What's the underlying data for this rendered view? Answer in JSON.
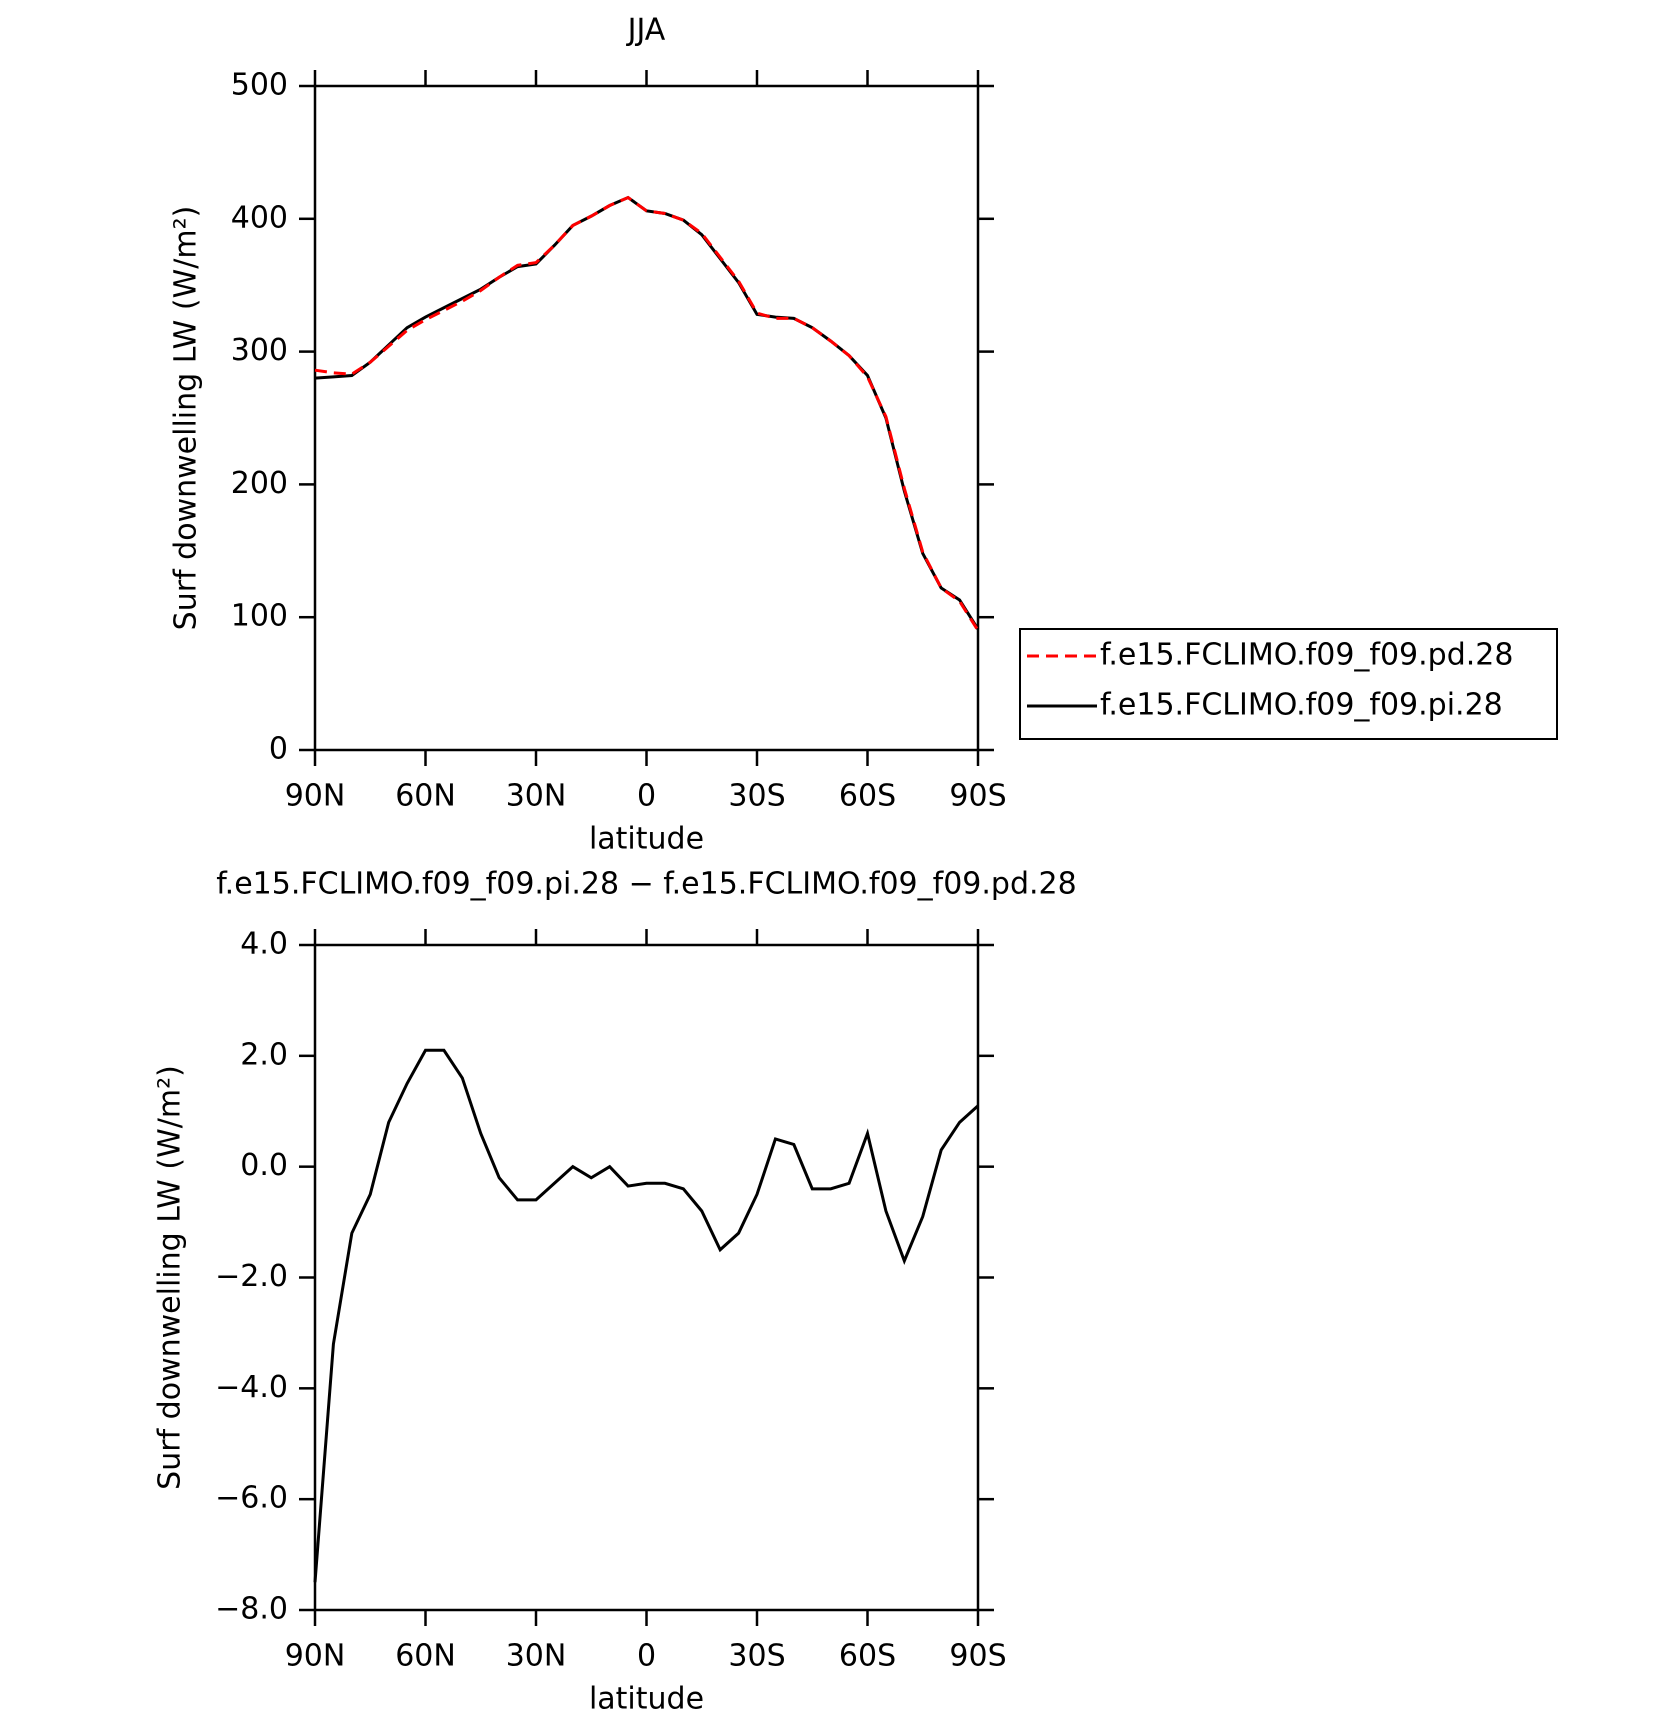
{
  "chart_data": [
    {
      "type": "line",
      "title": "JJA",
      "xlabel": "latitude",
      "ylabel": "Surf downwelling LW (W/m²)",
      "x": [
        90,
        85,
        80,
        75,
        70,
        65,
        60,
        55,
        50,
        45,
        40,
        35,
        30,
        25,
        20,
        15,
        10,
        5,
        0,
        -5,
        -10,
        -15,
        -20,
        -25,
        -30,
        -35,
        -40,
        -45,
        -50,
        -55,
        -60,
        -65,
        -70,
        -75,
        -80,
        -85,
        -90
      ],
      "xlim": [
        90,
        -90
      ],
      "xticks": [
        {
          "value": 90,
          "label": "90N"
        },
        {
          "value": 60,
          "label": "60N"
        },
        {
          "value": 30,
          "label": "30N"
        },
        0,
        {
          "value": -30,
          "label": "30S"
        },
        {
          "value": -60,
          "label": "60S"
        },
        {
          "value": -90,
          "label": "90S"
        }
      ],
      "ylim": [
        0,
        500
      ],
      "yticks": [
        0,
        100,
        200,
        300,
        400,
        500
      ],
      "legend": "right",
      "series": [
        {
          "name": "f.e15.FCLIMO.f09_f09.pd.28",
          "color": "#ff0000",
          "dashed": true,
          "values": [
            286,
            284,
            283,
            292,
            304,
            316,
            324,
            331,
            338,
            346,
            356,
            365,
            367,
            380,
            395,
            402,
            410,
            416,
            406,
            404,
            399,
            389,
            371,
            353,
            329,
            325,
            325,
            318,
            308,
            297,
            281,
            251,
            197,
            149,
            122,
            112,
            90
          ]
        },
        {
          "name": "f.e15.FCLIMO.f09_f09.pi.28",
          "color": "#000000",
          "dashed": false,
          "values": [
            280,
            281,
            282,
            292,
            305,
            318,
            326,
            333,
            340,
            347,
            356,
            364,
            366,
            380,
            395,
            402,
            410,
            416,
            406,
            404,
            399,
            388,
            370,
            352,
            328,
            326,
            325,
            318,
            308,
            297,
            282,
            250,
            195,
            148,
            122,
            113,
            91
          ]
        }
      ]
    },
    {
      "type": "line",
      "title": "f.e15.FCLIMO.f09_f09.pi.28 − f.e15.FCLIMO.f09_f09.pd.28",
      "xlabel": "latitude",
      "ylabel": "Surf downwelling LW (W/m²)",
      "x": [
        90,
        85,
        80,
        75,
        70,
        65,
        60,
        55,
        50,
        45,
        40,
        35,
        30,
        25,
        20,
        15,
        10,
        5,
        0,
        -5,
        -10,
        -15,
        -20,
        -25,
        -30,
        -35,
        -40,
        -45,
        -50,
        -55,
        -60,
        -65,
        -70,
        -75,
        -80,
        -85,
        -90
      ],
      "xlim": [
        90,
        -90
      ],
      "xticks": [
        {
          "value": 90,
          "label": "90N"
        },
        {
          "value": 60,
          "label": "60N"
        },
        {
          "value": 30,
          "label": "30N"
        },
        0,
        {
          "value": -30,
          "label": "30S"
        },
        {
          "value": -60,
          "label": "60S"
        },
        {
          "value": -90,
          "label": "90S"
        }
      ],
      "ylim": [
        -8,
        4
      ],
      "yticks": [
        {
          "value": -8,
          "label": "−8.0"
        },
        {
          "value": -6,
          "label": "−6.0"
        },
        {
          "value": -4,
          "label": "−4.0"
        },
        {
          "value": -2,
          "label": "−2.0"
        },
        {
          "value": 0,
          "label": "0.0"
        },
        {
          "value": 2,
          "label": "2.0"
        },
        {
          "value": 4,
          "label": "4.0"
        }
      ],
      "color": "#000000",
      "values": [
        -7.5,
        -3.2,
        -1.2,
        -0.5,
        0.8,
        1.5,
        2.1,
        2.1,
        1.6,
        0.6,
        -0.2,
        -0.6,
        -0.6,
        -0.3,
        0.0,
        -0.2,
        0.0,
        -0.35,
        -0.3,
        -0.3,
        -0.4,
        -0.8,
        -1.5,
        -1.2,
        -0.5,
        0.5,
        0.4,
        -0.4,
        -0.4,
        -0.3,
        0.6,
        -0.8,
        -1.7,
        -0.9,
        0.3,
        0.8,
        1.1
      ]
    }
  ]
}
